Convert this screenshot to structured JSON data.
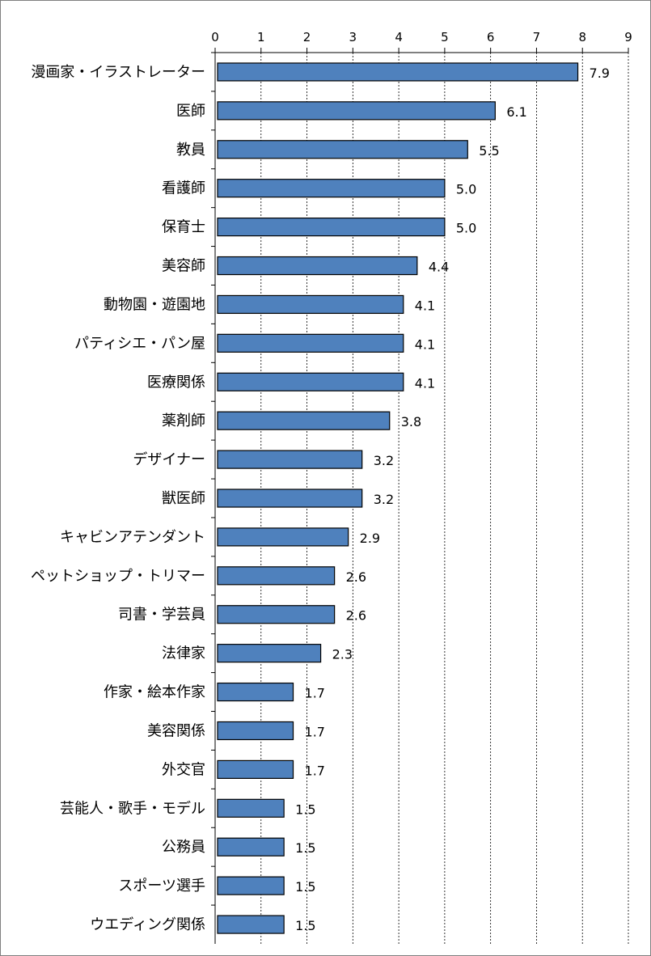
{
  "chart_data": {
    "type": "bar",
    "orientation": "horizontal",
    "categories": [
      "漫画家・イラストレーター",
      "医師",
      "教員",
      "看護師",
      "保育士",
      "美容師",
      "動物園・遊園地",
      "パティシエ・パン屋",
      "医療関係",
      "薬剤師",
      "デザイナー",
      "獣医師",
      "キャビンアテンダント",
      "ペットショップ・トリマー",
      "司書・学芸員",
      "法律家",
      "作家・絵本作家",
      "美容関係",
      "外交官",
      "芸能人・歌手・モデル",
      "公務員",
      "スポーツ選手",
      "ウエディング関係"
    ],
    "values": [
      7.9,
      6.1,
      5.5,
      5.0,
      5.0,
      4.4,
      4.1,
      4.1,
      4.1,
      3.8,
      3.2,
      3.2,
      2.9,
      2.6,
      2.6,
      2.3,
      1.7,
      1.7,
      1.7,
      1.5,
      1.5,
      1.5,
      1.5
    ],
    "value_labels": [
      "7.9",
      "6.1",
      "5.5",
      "5.0",
      "5.0",
      "4.4",
      "4.1",
      "4.1",
      "4.1",
      "3.8",
      "3.2",
      "3.2",
      "2.9",
      "2.6",
      "2.6",
      "2.3",
      "1.7",
      "1.7",
      "1.7",
      "1.5",
      "1.5",
      "1.5",
      "1.5"
    ],
    "xlim": [
      0,
      9
    ],
    "x_ticks": [
      "0",
      "1",
      "2",
      "3",
      "4",
      "5",
      "6",
      "7",
      "8",
      "9"
    ],
    "axis_position": "top",
    "grid": "vertical-dashed",
    "bar_color": "#4f81bd",
    "bar_border_color": "#000000",
    "title": "",
    "xlabel": "",
    "ylabel": ""
  }
}
